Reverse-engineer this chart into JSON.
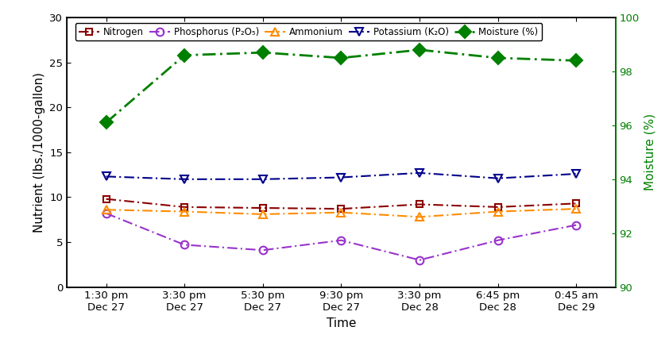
{
  "x_labels": [
    "1:30 pm\nDec 27",
    "3:30 pm\nDec 27",
    "5:30 pm\nDec 27",
    "9:30 pm\nDec 27",
    "3:30 pm\nDec 28",
    "6:45 pm\nDec 28",
    "0:45 am\nDec 29"
  ],
  "nitrogen": [
    9.8,
    8.9,
    8.8,
    8.7,
    9.2,
    8.9,
    9.3
  ],
  "phosphorus": [
    8.2,
    4.7,
    4.1,
    5.2,
    3.0,
    5.2,
    6.9
  ],
  "ammonium": [
    8.6,
    8.4,
    8.1,
    8.3,
    7.8,
    8.4,
    8.7
  ],
  "potassium": [
    12.3,
    12.0,
    12.0,
    12.2,
    12.7,
    12.1,
    12.6
  ],
  "moisture": [
    96.1,
    98.6,
    98.7,
    98.5,
    98.8,
    98.5,
    98.4
  ],
  "nitrogen_color": "#8B0000",
  "phosphorus_color": "#9932CC",
  "ammonium_color": "#FF8C00",
  "potassium_color": "#00008B",
  "moisture_color": "#008000",
  "ylim_left": [
    0,
    30
  ],
  "ylim_right": [
    90,
    100
  ],
  "yticks_left": [
    0,
    5,
    10,
    15,
    20,
    25,
    30
  ],
  "yticks_right": [
    90,
    92,
    94,
    96,
    98,
    100
  ],
  "ylabel_left": "Nutrient (lbs./1000-gallon)",
  "ylabel_right": "Moisture (%)",
  "xlabel": "Time",
  "legend_labels": [
    "Nitrogen",
    "Phosphorus (P₂O₅)",
    "Ammonium",
    "Potassium (K₂O)",
    "Moisture (%)"
  ],
  "figsize": [
    8.42,
    4.41
  ],
  "dpi": 100
}
